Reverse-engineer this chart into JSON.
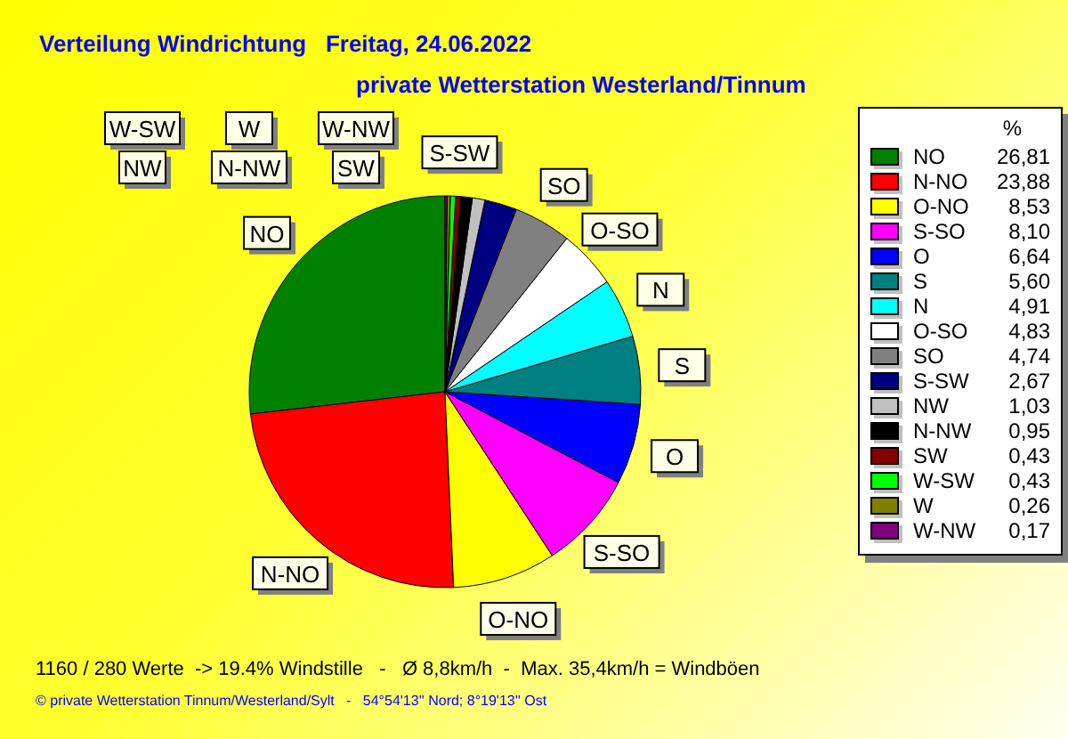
{
  "chart_data": {
    "type": "pie",
    "title": "Verteilung Windrichtung   Freitag, 24.06.2022",
    "subtitle": "private Wetterstation Westerland/Tinnum",
    "categories": [
      "NO",
      "N-NO",
      "O-NO",
      "S-SO",
      "O",
      "S",
      "N",
      "O-SO",
      "SO",
      "S-SW",
      "NW",
      "N-NW",
      "SW",
      "W-SW",
      "W",
      "W-NW"
    ],
    "values": [
      26.81,
      23.88,
      8.53,
      8.1,
      6.64,
      5.6,
      4.91,
      4.83,
      4.74,
      2.67,
      1.03,
      0.95,
      0.43,
      0.43,
      0.26,
      0.17
    ],
    "value_labels": [
      "26,81",
      "23,88",
      "8,53",
      "8,10",
      "6,64",
      "5,60",
      "4,91",
      "4,83",
      "4,74",
      "2,67",
      "1,03",
      "0,95",
      "0,43",
      "0,43",
      "0,26",
      "0,17"
    ],
    "colors": [
      "#008000",
      "#ff0000",
      "#ffff00",
      "#ff00ff",
      "#0000ff",
      "#008080",
      "#00ffff",
      "#ffffff",
      "#808080",
      "#000080",
      "#c0c0c0",
      "#000000",
      "#800000",
      "#00ff00",
      "#808000",
      "#800080"
    ],
    "legend": "right",
    "legend_title": "%",
    "annotations": [
      "1160 / 280 Werte  -> 19.4% Windstille   -   Ø 8,8km/h  -  Max. 35,4km/h = Windböen",
      "© private Wetterstation Tinnum/Westerland/Sylt   -   54°54'13'' Nord; 8°19'13'' Ost"
    ]
  }
}
